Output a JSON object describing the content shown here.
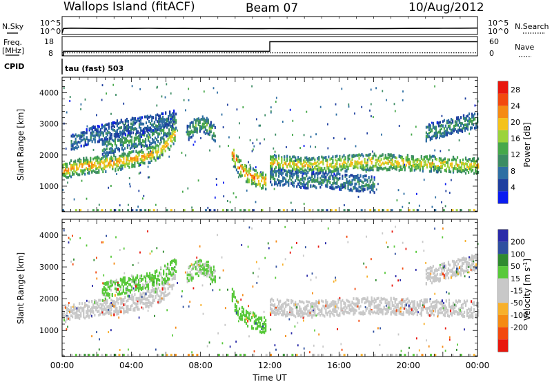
{
  "header": {
    "title": "Wallops Island (fitACF)",
    "beam": "Beam 07",
    "date": "10/Aug/2012"
  },
  "side_labels": {
    "nsky": "N.Sky",
    "nsearch": "N.Search",
    "freq_line1": "Freq.",
    "freq_line2": "[MHz]",
    "nave": "Nave",
    "cpid": "CPID",
    "cpid_value": "tau (fast) 503"
  },
  "colors": {
    "power": [
      "#0a1cf0",
      "#1f3f9f",
      "#2f6fa3",
      "#3c8c63",
      "#46a84a",
      "#9bd33b",
      "#f4c21a",
      "#f58a13",
      "#f2490e",
      "#e8170d"
    ],
    "velocity": [
      "#e8170d",
      "#f2490e",
      "#f58a13",
      "#f7b02b",
      "#c8c8c8",
      "#c8c8c8",
      "#58c93a",
      "#2f8a2f",
      "#2f4f9f",
      "#2a2aa8"
    ]
  },
  "chart_data": [
    {
      "type": "line",
      "panel": "noise",
      "left_axis": {
        "label": "N.Sky",
        "ticks": [
          "10^5",
          "10^0"
        ]
      },
      "right_axis": {
        "label": "N.Search",
        "ticks": [
          "10^5",
          "10^0"
        ]
      },
      "x": [
        0,
        0.08,
        0.5,
        1,
        2,
        3,
        4,
        5,
        6,
        7,
        8,
        9,
        10,
        11,
        12,
        13,
        14,
        15,
        16,
        17,
        18,
        19,
        20,
        21,
        22,
        23,
        24
      ],
      "y": [
        0.3,
        1.6,
        1.7,
        1.68,
        1.62,
        1.58,
        1.62,
        1.66,
        1.6,
        1.62,
        1.58,
        1.6,
        1.56,
        1.55,
        1.57,
        1.55,
        1.54,
        1.55,
        1.56,
        1.57,
        1.55,
        1.58,
        1.62,
        1.64,
        1.66,
        1.68,
        1.72
      ],
      "ylim": [
        0,
        5
      ]
    },
    {
      "type": "line",
      "panel": "frequency",
      "left_axis": {
        "label": "Freq. [MHz]",
        "ticks": [
          "18",
          "8"
        ],
        "ylim": [
          8,
          18
        ]
      },
      "right_axis": {
        "label": "Nave",
        "ticks": [
          "60",
          "0"
        ],
        "ylim": [
          0,
          60
        ]
      },
      "series": [
        {
          "name": "Freq.",
          "x": [
            0,
            0.08,
            0.08,
            12,
            12,
            24
          ],
          "y": [
            8,
            8,
            10.2,
            10.2,
            15.5,
            15.5
          ]
        },
        {
          "name": "Nave",
          "style": "dotted",
          "x": [
            0,
            24
          ],
          "y": [
            6,
            6
          ]
        }
      ]
    },
    {
      "type": "heatmap",
      "panel": "power",
      "xlabel": "",
      "ylabel": "Slant Range [km]",
      "xlim": [
        0,
        24
      ],
      "ylim": [
        180,
        4500
      ],
      "yticks": [
        1000,
        2000,
        3000,
        4000
      ],
      "colorbar": {
        "label": "Power [dB]",
        "ticks": [
          4,
          8,
          12,
          16,
          20,
          24,
          28
        ],
        "range": [
          0,
          30
        ]
      },
      "bands": [
        {
          "x": [
            0,
            0.5,
            1,
            1.5,
            2,
            2.5,
            3,
            3.5,
            4,
            4.5,
            5,
            5.5,
            6,
            6.5
          ],
          "y": [
            1500,
            1560,
            1620,
            1660,
            1700,
            1720,
            1750,
            1800,
            1860,
            1920,
            2000,
            2100,
            2300,
            2700
          ],
          "value": 22
        },
        {
          "x": [
            2.3,
            3,
            3.8,
            4.5,
            5.2,
            6,
            6.6
          ],
          "y": [
            2200,
            2350,
            2450,
            2500,
            2600,
            2800,
            3100
          ],
          "value": 13
        },
        {
          "x": [
            0.5,
            1.5,
            2.5,
            3.5,
            4.5,
            5.5,
            6.5
          ],
          "y": [
            2400,
            2600,
            2750,
            2900,
            2950,
            3050,
            3200
          ],
          "value": 9
        },
        {
          "x": [
            9.8,
            10.2,
            10.6,
            11,
            11.4,
            11.8
          ],
          "y": [
            2050,
            1600,
            1400,
            1300,
            1200,
            1150
          ],
          "value": 24
        },
        {
          "x": [
            7.2,
            7.6,
            8,
            8.4,
            8.8
          ],
          "y": [
            2700,
            2900,
            3000,
            2900,
            2700
          ],
          "value": 14
        },
        {
          "x": [
            12,
            13,
            14,
            15,
            16,
            17,
            18,
            19,
            20,
            21,
            22,
            23,
            24
          ],
          "y": [
            1750,
            1700,
            1660,
            1680,
            1720,
            1760,
            1780,
            1760,
            1740,
            1720,
            1700,
            1680,
            1650
          ],
          "value": 20
        },
        {
          "x": [
            12,
            13,
            14,
            15,
            16,
            17,
            18
          ],
          "y": [
            1300,
            1250,
            1200,
            1180,
            1150,
            1100,
            1050
          ],
          "value": 11
        },
        {
          "x": [
            21,
            22,
            23,
            24
          ],
          "y": [
            2700,
            2850,
            3000,
            3150
          ],
          "value": 12
        }
      ]
    },
    {
      "type": "heatmap",
      "panel": "velocity",
      "xlabel": "Time UT",
      "ylabel": "Slant Range [km]",
      "xlim": [
        0,
        24
      ],
      "ylim": [
        180,
        4500
      ],
      "xticks": [
        "00:00",
        "04:00",
        "08:00",
        "12:00",
        "16:00",
        "20:00",
        "00:00"
      ],
      "yticks": [
        1000,
        2000,
        3000,
        4000
      ],
      "colorbar": {
        "label": "Velocity [m s^-1]",
        "ticks": [
          200,
          100,
          50,
          15,
          -15,
          -50,
          -100,
          -200
        ],
        "range": [
          -250,
          250
        ]
      },
      "bands": [
        {
          "x": [
            0,
            0.5,
            1,
            1.5,
            2,
            2.5,
            3,
            3.5,
            4,
            4.5,
            5,
            5.5,
            6,
            6.5
          ],
          "y": [
            1500,
            1560,
            1620,
            1660,
            1700,
            1720,
            1750,
            1800,
            1860,
            1920,
            2000,
            2100,
            2300,
            2700
          ],
          "value": 0
        },
        {
          "x": [
            2.3,
            3,
            3.8,
            4.5,
            5.2,
            6,
            6.6
          ],
          "y": [
            2200,
            2350,
            2450,
            2500,
            2600,
            2800,
            3100
          ],
          "value": 60
        },
        {
          "x": [
            9.8,
            10.2,
            10.6,
            11,
            11.4,
            11.8
          ],
          "y": [
            2050,
            1600,
            1400,
            1300,
            1200,
            1150
          ],
          "value": 70
        },
        {
          "x": [
            7.2,
            7.6,
            8,
            8.4,
            8.8
          ],
          "y": [
            2700,
            2900,
            3000,
            2900,
            2700
          ],
          "value": 55
        },
        {
          "x": [
            12,
            13,
            14,
            15,
            16,
            17,
            18,
            19,
            20,
            21,
            22,
            23,
            24
          ],
          "y": [
            1750,
            1700,
            1660,
            1680,
            1720,
            1760,
            1780,
            1760,
            1740,
            1720,
            1700,
            1680,
            1650
          ],
          "value": 0
        },
        {
          "x": [
            21,
            22,
            23,
            24
          ],
          "y": [
            2700,
            2850,
            3000,
            3150
          ],
          "value": 0
        }
      ]
    }
  ]
}
